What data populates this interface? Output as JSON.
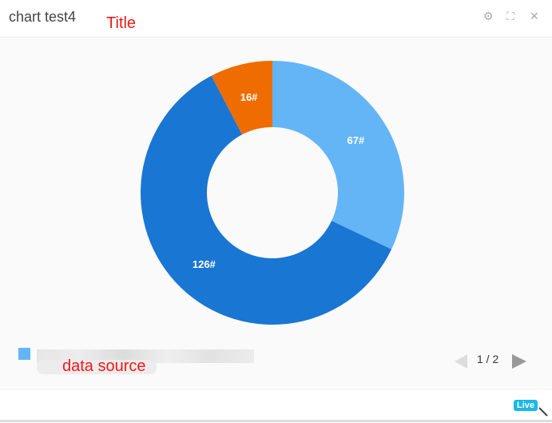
{
  "header": {
    "title": "chart test4",
    "annotation": "Title",
    "icons": [
      "gear-icon",
      "fullscreen-icon",
      "close-icon"
    ]
  },
  "legend": {
    "annotation": "data source",
    "page": "1 / 2",
    "color": "#64b5f6"
  },
  "footer": {
    "live_label": "Live"
  },
  "chart_data": {
    "type": "pie",
    "donut": true,
    "start": "top, clockwise",
    "slices": [
      {
        "value": 67,
        "label": "67#",
        "color": "#64b5f6"
      },
      {
        "value": 126,
        "label": "126#",
        "color": "#1976d2"
      },
      {
        "value": 16,
        "label": "16#",
        "color": "#ef6c00"
      }
    ]
  }
}
